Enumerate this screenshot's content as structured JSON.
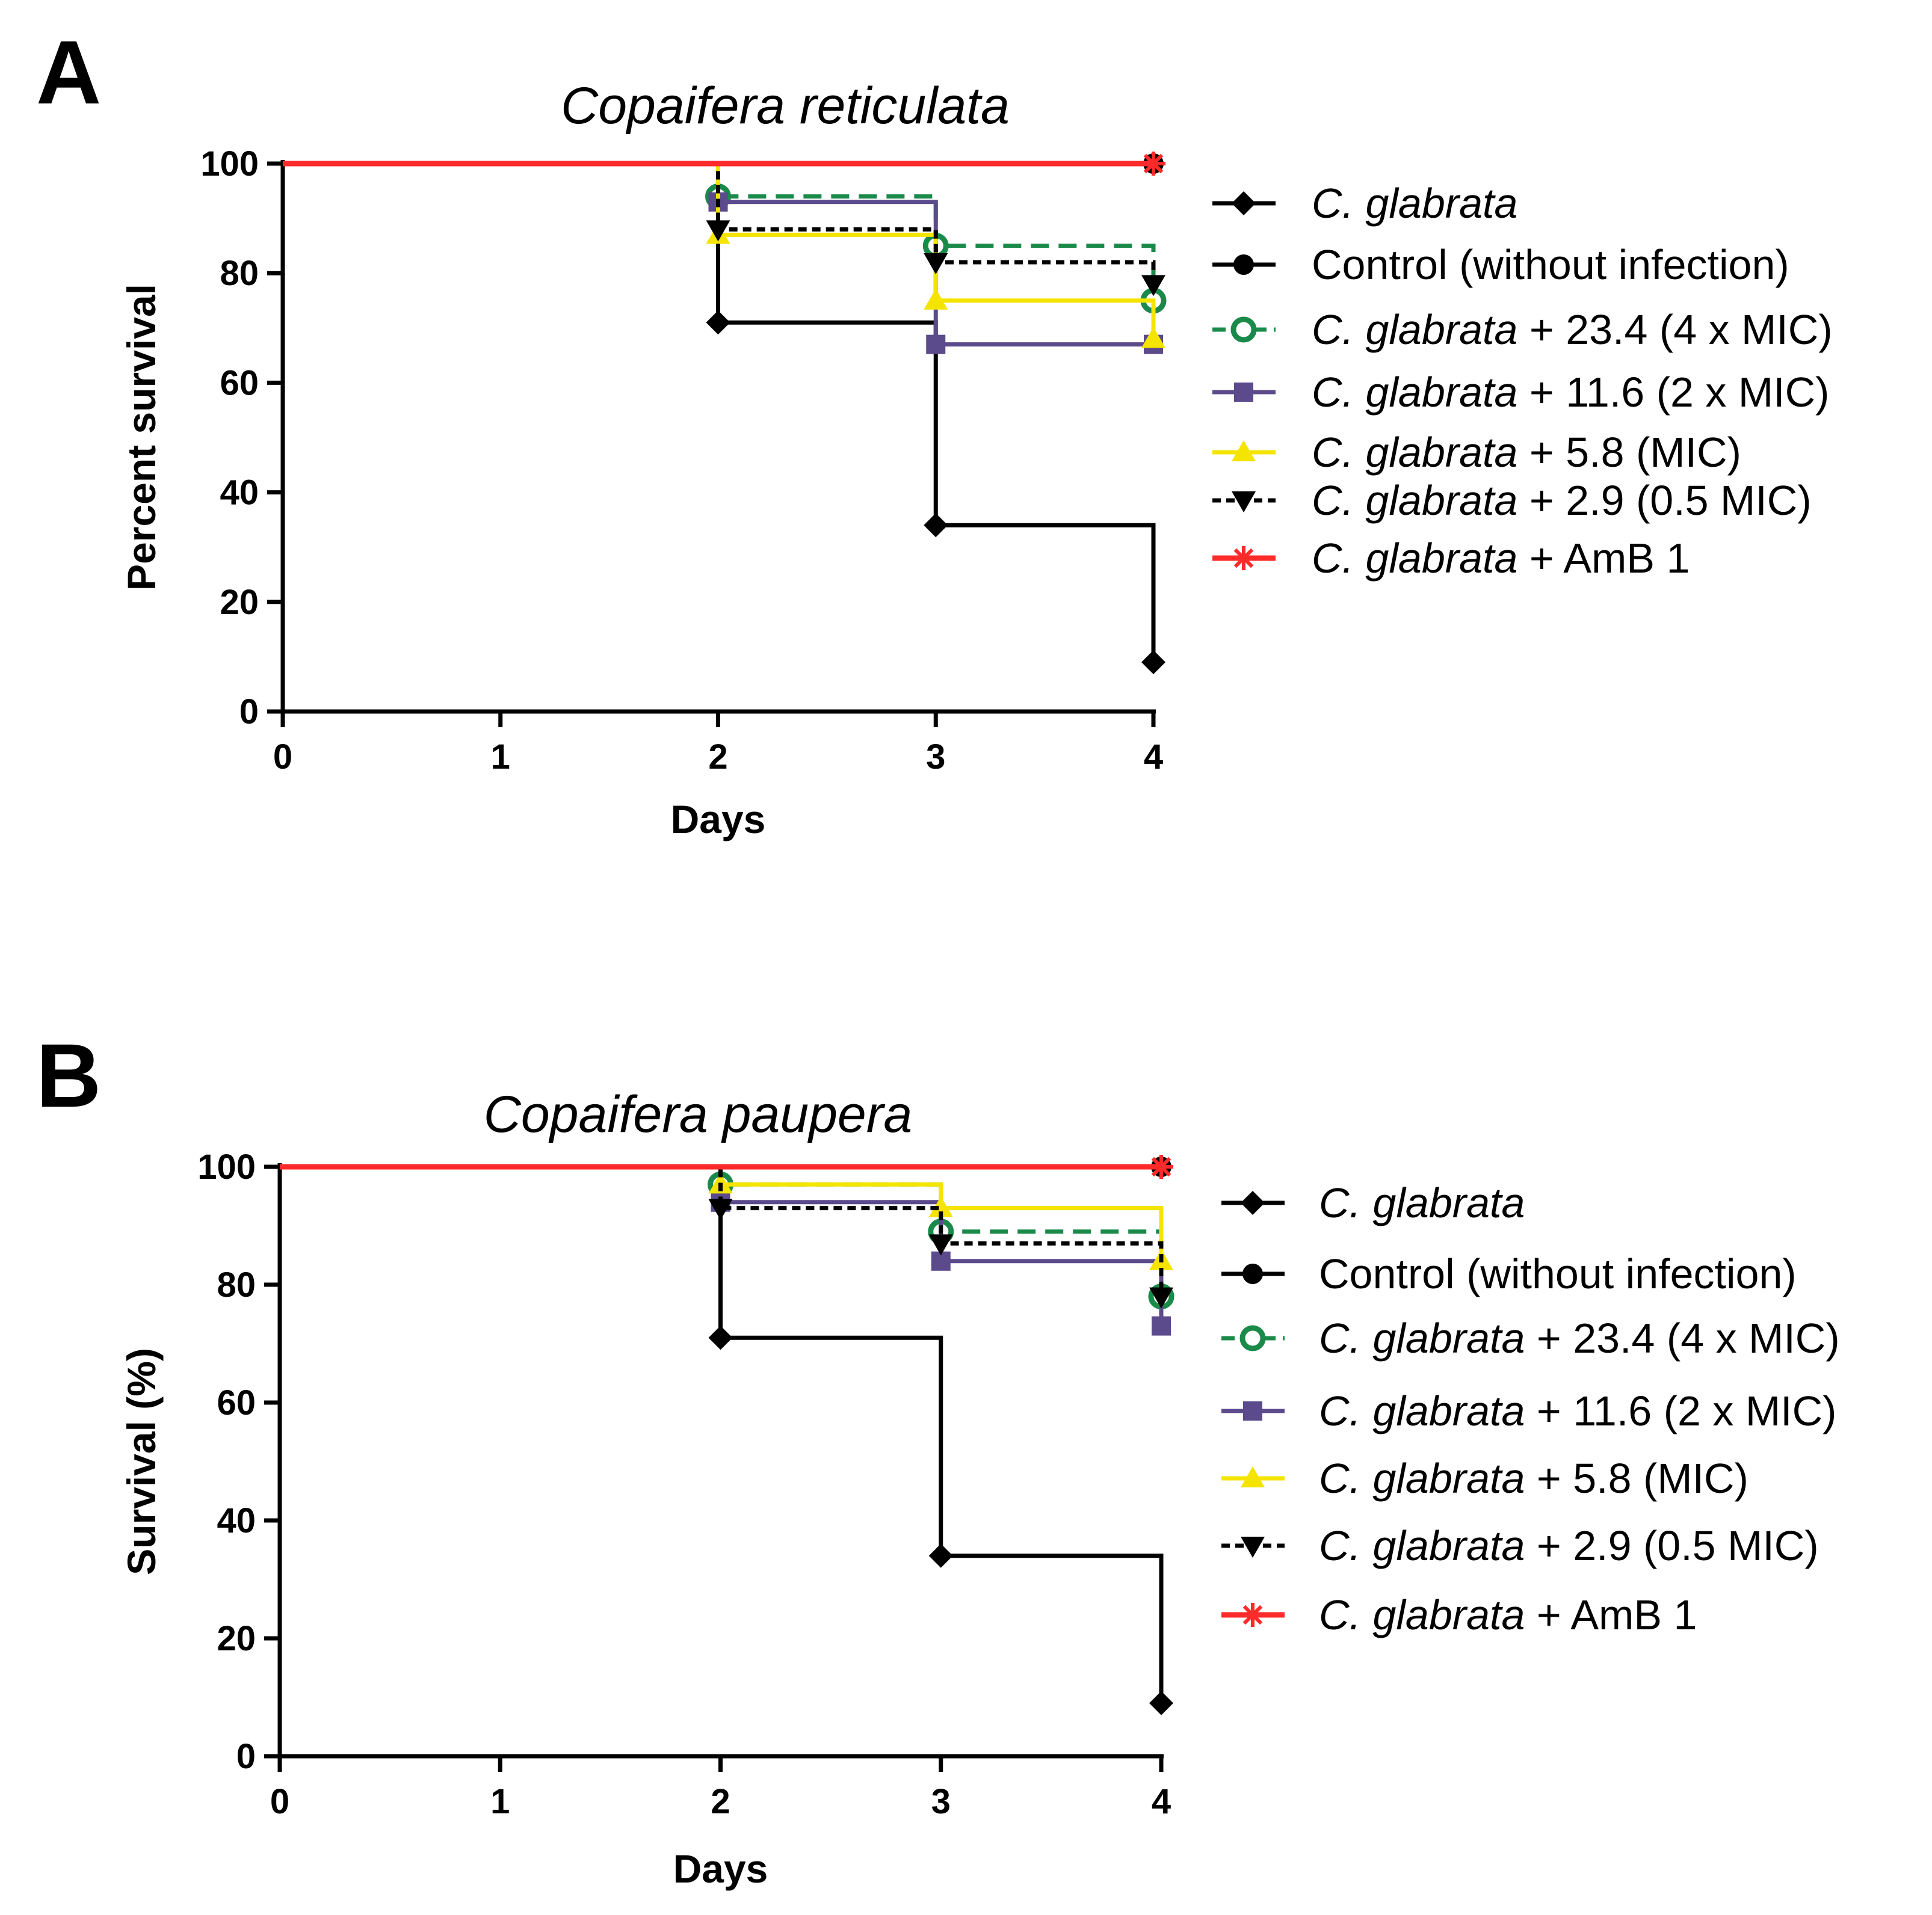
{
  "chart_data": [
    {
      "panel": "A",
      "type": "line",
      "title": "Copaifera reticulata",
      "xlabel": "Days",
      "ylabel": "Percent survival",
      "xlim": [
        0,
        4
      ],
      "ylim": [
        0,
        100
      ],
      "xticks": [
        0,
        1,
        2,
        3,
        4
      ],
      "yticks": [
        0,
        20,
        40,
        60,
        80,
        100
      ],
      "series": [
        {
          "name": "C. glabrata",
          "italic": "C. glabrata",
          "rest": "",
          "color": "#000000",
          "dash": "",
          "marker": "diamond",
          "steps": [
            [
              0,
              100
            ],
            [
              2,
              71
            ],
            [
              3,
              34
            ],
            [
              4,
              9
            ]
          ],
          "endpoint": 9
        },
        {
          "name": "Control (without infection)",
          "italic": "",
          "rest": "Control (without infection)",
          "color": "#000000",
          "dash": "",
          "marker": "circle",
          "steps": [
            [
              0,
              100
            ],
            [
              4,
              100
            ]
          ],
          "endpoint": 100
        },
        {
          "name": " C. glabrata + 23.4 (4 x MIC)",
          "italic": "C. glabrata",
          "rest": " + 23.4 (4 x MIC)",
          "color": "#1a8a4a",
          "dash": "30,16",
          "marker": "open-circle",
          "steps": [
            [
              0,
              100
            ],
            [
              2,
              94
            ],
            [
              3,
              85
            ],
            [
              4,
              75
            ]
          ],
          "endpoint": 75
        },
        {
          "name": "C. glabrata + 11.6 (2 x MIC)",
          "italic": "C. glabrata",
          "rest": " + 11.6 (2 x MIC)",
          "color": "#5b4a8c",
          "dash": "",
          "marker": "square",
          "steps": [
            [
              0,
              100
            ],
            [
              2,
              93
            ],
            [
              3,
              67
            ],
            [
              4,
              67
            ]
          ],
          "endpoint": 67
        },
        {
          "name": "C. glabrata + 5.8  (MIC)",
          "italic": "C. glabrata",
          "rest": " + 5.8  (MIC)",
          "color": "#f5e400",
          "dash": "",
          "marker": "triangle-up",
          "steps": [
            [
              0,
              100
            ],
            [
              2,
              87
            ],
            [
              3,
              75
            ],
            [
              4,
              68
            ]
          ],
          "endpoint": 68
        },
        {
          "name": "C. glabrata + 2.9  (0.5 MIC)",
          "italic": "C. glabrata",
          "rest": " + 2.9  (0.5 MIC)",
          "color": "#000000",
          "dash": "14,9",
          "marker": "triangle-down",
          "steps": [
            [
              0,
              100
            ],
            [
              2,
              88
            ],
            [
              3,
              82
            ],
            [
              4,
              78
            ]
          ],
          "endpoint": 78
        },
        {
          "name": "C. glabrata + AmB 1",
          "italic": "C. glabrata",
          "rest": " + AmB 1",
          "color": "#ff2a2a",
          "dash": "",
          "marker": "asterisk",
          "steps": [
            [
              0,
              100
            ],
            [
              4,
              100
            ]
          ],
          "endpoint": 100
        }
      ]
    },
    {
      "panel": "B",
      "type": "line",
      "title": "Copaifera paupera",
      "xlabel": "Days",
      "ylabel": "Survival (%)",
      "xlim": [
        0,
        4
      ],
      "ylim": [
        0,
        100
      ],
      "xticks": [
        0,
        1,
        2,
        3,
        4
      ],
      "yticks": [
        0,
        20,
        40,
        60,
        80,
        100
      ],
      "series": [
        {
          "name": "C. glabrata",
          "italic": "C. glabrata",
          "rest": "",
          "color": "#000000",
          "dash": "",
          "marker": "diamond",
          "steps": [
            [
              0,
              100
            ],
            [
              2,
              71
            ],
            [
              3,
              34
            ],
            [
              4,
              9
            ]
          ],
          "endpoint": 9
        },
        {
          "name": "Control (without infection)",
          "italic": "",
          "rest": "Control (without infection)",
          "color": "#000000",
          "dash": "",
          "marker": "circle",
          "steps": [
            [
              0,
              100
            ],
            [
              4,
              100
            ]
          ],
          "endpoint": 100
        },
        {
          "name": "C. glabrata + 23.4 (4 x MIC)",
          "italic": "C. glabrata",
          "rest": " + 23.4 (4 x MIC)",
          "color": "#1a8a4a",
          "dash": "30,16",
          "marker": "open-circle",
          "steps": [
            [
              0,
              100
            ],
            [
              2,
              97
            ],
            [
              3,
              89
            ],
            [
              4,
              78
            ]
          ],
          "endpoint": 78
        },
        {
          "name": "C. glabrata + 11.6 (2 x MIC)",
          "italic": "C. glabrata",
          "rest": " + 11.6 (2 x MIC)",
          "color": "#5b4a8c",
          "dash": "",
          "marker": "square",
          "steps": [
            [
              0,
              100
            ],
            [
              2,
              94
            ],
            [
              3,
              84
            ],
            [
              4,
              73
            ]
          ],
          "endpoint": 73
        },
        {
          "name": "C. glabrata + 5.8 (MIC)",
          "italic": "C. glabrata",
          "rest": " + 5.8 (MIC)",
          "color": "#f5e400",
          "dash": "",
          "marker": "triangle-up",
          "steps": [
            [
              0,
              100
            ],
            [
              2,
              97
            ],
            [
              3,
              93
            ],
            [
              4,
              84
            ]
          ],
          "endpoint": 84
        },
        {
          "name": "C. glabrata + 2.9 (0.5 MIC)",
          "italic": "C. glabrata",
          "rest": " + 2.9 (0.5 MIC)",
          "color": "#000000",
          "dash": "14,9",
          "marker": "triangle-down",
          "steps": [
            [
              0,
              100
            ],
            [
              2,
              93
            ],
            [
              3,
              87
            ],
            [
              4,
              78
            ]
          ],
          "endpoint": 78
        },
        {
          "name": "C. glabrata + AmB 1",
          "italic": "C. glabrata",
          "rest": " + AmB 1",
          "color": "#ff2a2a",
          "dash": "",
          "marker": "asterisk",
          "steps": [
            [
              0,
              100
            ],
            [
              4,
              100
            ]
          ],
          "endpoint": 100
        }
      ]
    }
  ]
}
